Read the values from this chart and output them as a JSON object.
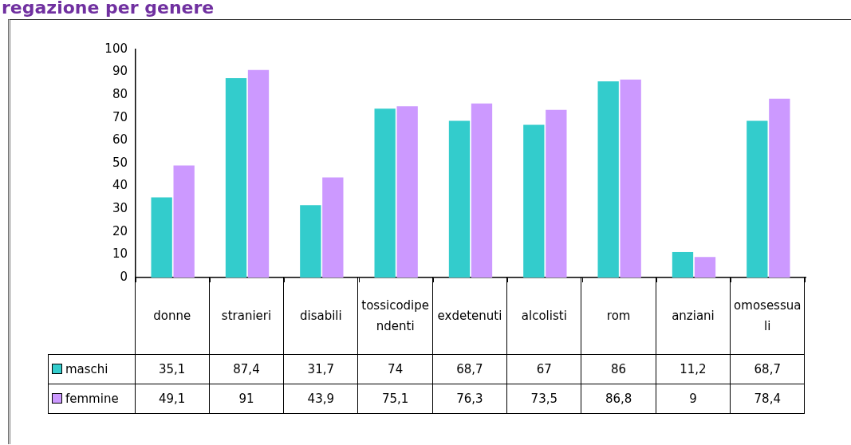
{
  "chart_data": {
    "type": "bar",
    "title": "regazione per genere",
    "categories": [
      "donne",
      "stranieri",
      "disabili",
      "tossicodipendenti",
      "exdetenuti",
      "alcolisti",
      "rom",
      "anziani",
      "omosessuali"
    ],
    "series": [
      {
        "name": "maschi",
        "color": "#33cccc",
        "values": [
          35.1,
          87.4,
          31.7,
          74,
          68.7,
          67,
          86,
          11.2,
          68.7
        ],
        "value_labels": [
          "35,1",
          "87,4",
          "31,7",
          "74",
          "68,7",
          "67",
          "86",
          "11,2",
          "68,7"
        ]
      },
      {
        "name": "femmine",
        "color": "#cc99ff",
        "values": [
          49.1,
          91,
          43.9,
          75.1,
          76.3,
          73.5,
          86.8,
          9,
          78.4
        ],
        "value_labels": [
          "49,1",
          "91",
          "43,9",
          "75,1",
          "76,3",
          "73,5",
          "86,8",
          "9",
          "78,4"
        ]
      }
    ],
    "ylim": [
      0,
      100
    ],
    "yticks": [
      0,
      10,
      20,
      30,
      40,
      50,
      60,
      70,
      80,
      90,
      100
    ],
    "grid": false,
    "legend": "bottom"
  }
}
